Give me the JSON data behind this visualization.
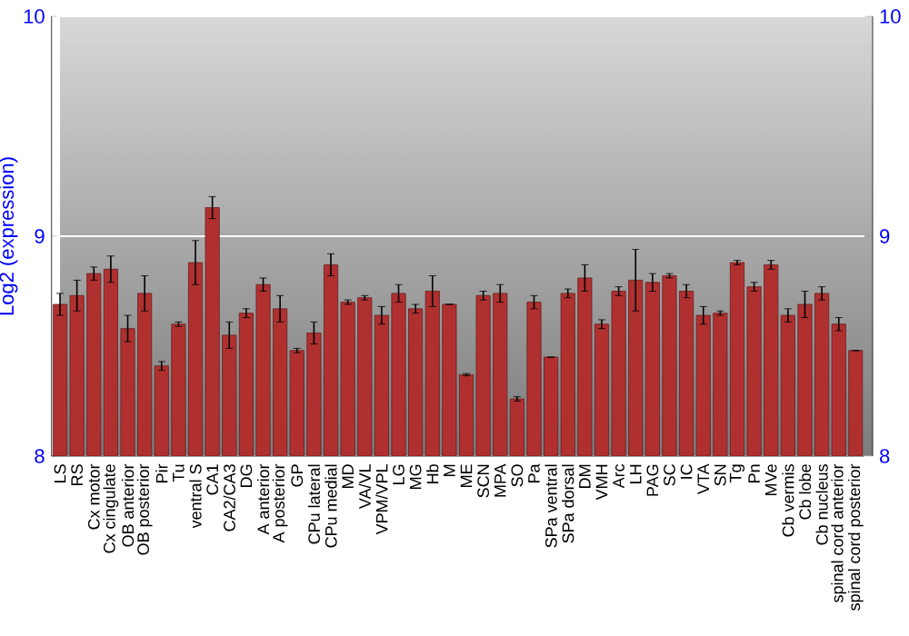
{
  "chart_data": {
    "type": "bar",
    "ylabel": "Log2 (expression)",
    "categories": [
      "LS",
      "RS",
      "Cx motor",
      "Cx cingulate",
      "OB anterior",
      "OB posterior",
      "Pir",
      "Tu",
      "ventral S",
      "CA1",
      "CA2/CA3",
      "DG",
      "A anterior",
      "A posterior",
      "GP",
      "CPu lateral",
      "CPu medial",
      "MD",
      "VA/VL",
      "VPM/VPL",
      "LG",
      "MG",
      "Hb",
      "M",
      "ME",
      "SCN",
      "MPA",
      "SO",
      "Pa",
      "SPa ventral",
      "SPa dorsal",
      "DM",
      "VMH",
      "Arc",
      "LH",
      "PAG",
      "SC",
      "IC",
      "VTA",
      "SN",
      "Tg",
      "Pn",
      "MVe",
      "Cb vermis",
      "Cb lobe",
      "Cb nucleus",
      "spinal cord anterior",
      "spinal cord posterior"
    ],
    "values": [
      8.69,
      8.73,
      8.83,
      8.85,
      8.58,
      8.74,
      8.41,
      8.6,
      8.88,
      9.13,
      8.55,
      8.65,
      8.78,
      8.67,
      8.48,
      8.56,
      8.87,
      8.7,
      8.72,
      8.64,
      8.74,
      8.67,
      8.75,
      8.69,
      8.37,
      8.73,
      8.74,
      8.26,
      8.7,
      8.45,
      8.74,
      8.81,
      8.6,
      8.75,
      8.8,
      8.79,
      8.82,
      8.75,
      8.64,
      8.65,
      8.88,
      8.77,
      8.87,
      8.64,
      8.69,
      8.74,
      8.6,
      8.48
    ],
    "errors": [
      0.05,
      0.07,
      0.03,
      0.06,
      0.06,
      0.08,
      0.02,
      0.01,
      0.1,
      0.05,
      0.06,
      0.02,
      0.03,
      0.06,
      0.01,
      0.05,
      0.05,
      0.01,
      0.01,
      0.04,
      0.04,
      0.02,
      0.07,
      null,
      0.005,
      0.02,
      0.04,
      0.01,
      0.03,
      null,
      0.02,
      0.06,
      0.02,
      0.02,
      0.14,
      0.04,
      0.01,
      0.03,
      0.04,
      0.01,
      0.01,
      0.02,
      0.02,
      0.03,
      0.06,
      0.03,
      0.03,
      null
    ],
    "color": "#b03030",
    "ylim": [
      8,
      10
    ],
    "yticks": [
      8,
      9,
      10
    ],
    "y2lim": [
      8,
      10
    ],
    "y2ticks": [
      8,
      9,
      10
    ],
    "grid": "y"
  }
}
